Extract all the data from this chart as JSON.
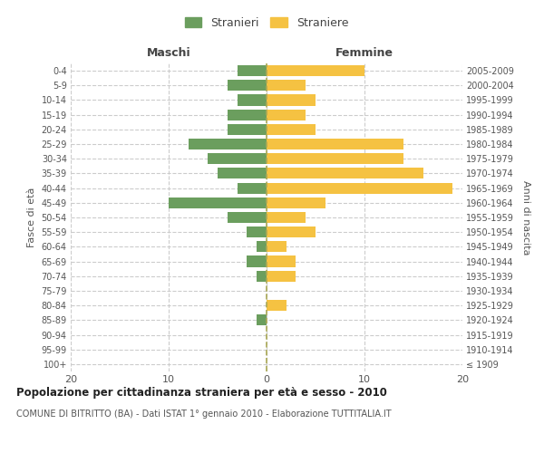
{
  "age_groups": [
    "100+",
    "95-99",
    "90-94",
    "85-89",
    "80-84",
    "75-79",
    "70-74",
    "65-69",
    "60-64",
    "55-59",
    "50-54",
    "45-49",
    "40-44",
    "35-39",
    "30-34",
    "25-29",
    "20-24",
    "15-19",
    "10-14",
    "5-9",
    "0-4"
  ],
  "birth_years": [
    "≤ 1909",
    "1910-1914",
    "1915-1919",
    "1920-1924",
    "1925-1929",
    "1930-1934",
    "1935-1939",
    "1940-1944",
    "1945-1949",
    "1950-1954",
    "1955-1959",
    "1960-1964",
    "1965-1969",
    "1970-1974",
    "1975-1979",
    "1980-1984",
    "1985-1989",
    "1990-1994",
    "1995-1999",
    "2000-2004",
    "2005-2009"
  ],
  "maschi": [
    0,
    0,
    0,
    1,
    0,
    0,
    1,
    2,
    1,
    2,
    4,
    10,
    3,
    5,
    6,
    8,
    4,
    4,
    3,
    4,
    3
  ],
  "femmine": [
    0,
    0,
    0,
    0,
    2,
    0,
    3,
    3,
    2,
    5,
    4,
    6,
    19,
    16,
    14,
    14,
    5,
    4,
    5,
    4,
    10
  ],
  "maschi_color": "#6b9e5e",
  "femmine_color": "#f5c242",
  "background_color": "#ffffff",
  "grid_color": "#cccccc",
  "title": "Popolazione per cittadinanza straniera per età e sesso - 2010",
  "subtitle": "COMUNE DI BITRITTO (BA) - Dati ISTAT 1° gennaio 2010 - Elaborazione TUTTITALIA.IT",
  "ylabel_left": "Fasce di età",
  "ylabel_right": "Anni di nascita",
  "header_maschi": "Maschi",
  "header_femmine": "Femmine",
  "legend_maschi": "Stranieri",
  "legend_femmine": "Straniere",
  "xlim": 20,
  "bar_height": 0.75
}
